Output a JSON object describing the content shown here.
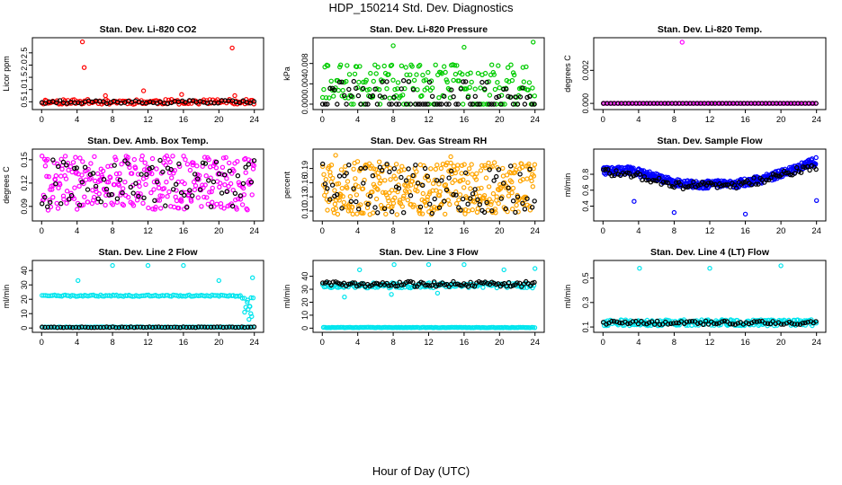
{
  "title": "HDP_150214  Std. Dev. Diagnostics",
  "xlabel": "Hour of Day (UTC)",
  "chart_data": [
    {
      "type": "scatter",
      "title": "Stan. Dev. Li-820 CO2",
      "ylabel": "Licor ppm",
      "xlim": [
        0,
        24
      ],
      "ylim": [
        0.3,
        3.0
      ],
      "xticks": [
        0,
        4,
        8,
        12,
        16,
        20,
        24
      ],
      "yticks": [
        0.5,
        1.0,
        1.5,
        2.0,
        2.5
      ],
      "ytick_labels": [
        "0.5",
        "1.0",
        "1.5",
        "2.0",
        "2.5"
      ],
      "series": [
        {
          "color": "#ff0000",
          "gen": {
            "kind": "band",
            "n": 140,
            "lo": 0.4,
            "hi": 0.6,
            "seed": 11
          },
          "points": [
            [
              4.6,
              2.95
            ],
            [
              4.8,
              1.9
            ],
            [
              11.5,
              0.95
            ],
            [
              15.8,
              0.8
            ],
            [
              21.5,
              2.7
            ],
            [
              21.8,
              0.75
            ],
            [
              7.2,
              0.75
            ]
          ]
        },
        {
          "color": "#000000",
          "gen": {
            "kind": "band",
            "n": 60,
            "lo": 0.42,
            "hi": 0.56,
            "seed": 12
          },
          "points": []
        }
      ]
    },
    {
      "type": "scatter",
      "title": "Stan. Dev. Li-820 Pressure",
      "ylabel": "kPa",
      "xlim": [
        0,
        24
      ],
      "ylim": [
        -0.0005,
        0.0125
      ],
      "xticks": [
        0,
        4,
        8,
        12,
        16,
        20,
        24
      ],
      "yticks": [
        0,
        0.004,
        0.008
      ],
      "ytick_labels": [
        "0.000",
        "0.004",
        "0.008"
      ],
      "series": [
        {
          "color": "#00cc00",
          "gen": {
            "kind": "mix",
            "n": 200,
            "seed": 21,
            "levels": [
              0,
              0.0015,
              0.003,
              0.0045,
              0.006,
              0.0075
            ],
            "jitter": 0.0003
          },
          "points": [
            [
              8.0,
              0.0115
            ],
            [
              16.0,
              0.0112
            ],
            [
              23.8,
              0.0122
            ]
          ]
        },
        {
          "color": "#000000",
          "gen": {
            "kind": "mix",
            "n": 90,
            "seed": 22,
            "levels": [
              0,
              0,
              0,
              0.0015,
              0.003,
              0.0045
            ],
            "jitter": 0.0002
          },
          "points": []
        }
      ]
    },
    {
      "type": "scatter",
      "title": "Stan. Dev. Li-820 Temp.",
      "ylabel": "degrees C",
      "xlim": [
        0,
        24
      ],
      "ylim": [
        -0.0002,
        0.0038
      ],
      "xticks": [
        0,
        4,
        8,
        12,
        16,
        20,
        24
      ],
      "yticks": [
        0,
        0.002
      ],
      "ytick_labels": [
        "0.000",
        "0.002"
      ],
      "series": [
        {
          "color": "#ff00ff",
          "gen": {
            "kind": "band",
            "n": 100,
            "lo": 0,
            "hi": 0,
            "seed": 31
          },
          "points": [
            [
              8.9,
              0.0037
            ],
            [
              0.1,
              0.0
            ]
          ]
        },
        {
          "color": "#000000",
          "gen": {
            "kind": "band",
            "n": 60,
            "lo": 0,
            "hi": 0,
            "seed": 32
          },
          "points": []
        }
      ]
    },
    {
      "type": "scatter",
      "title": "Stan. Dev. Amb. Box Temp.",
      "ylabel": "degrees C",
      "xlim": [
        0,
        24
      ],
      "ylim": [
        0.075,
        0.16
      ],
      "xticks": [
        0,
        4,
        8,
        12,
        16,
        20,
        24
      ],
      "yticks": [
        0.09,
        0.12,
        0.15
      ],
      "ytick_labels": [
        "0.09",
        "0.12",
        "0.15"
      ],
      "series": [
        {
          "color": "#ff00ff",
          "gen": {
            "kind": "band",
            "n": 320,
            "lo": 0.085,
            "hi": 0.155,
            "seed": 41
          },
          "points": []
        },
        {
          "color": "#000000",
          "gen": {
            "kind": "band",
            "n": 80,
            "lo": 0.088,
            "hi": 0.15,
            "seed": 42
          },
          "points": []
        }
      ]
    },
    {
      "type": "scatter",
      "title": "Stan. Dev. Gas Stream RH",
      "ylabel": "percent",
      "xlim": [
        0,
        24
      ],
      "ylim": [
        0.085,
        0.225
      ],
      "xticks": [
        0,
        4,
        8,
        12,
        16,
        20,
        24
      ],
      "yticks": [
        0.1,
        0.13,
        0.16,
        0.19
      ],
      "ytick_labels": [
        "0.10",
        "0.13",
        "0.16",
        "0.19"
      ],
      "series": [
        {
          "color": "#ffa500",
          "gen": {
            "kind": "band",
            "n": 360,
            "lo": 0.092,
            "hi": 0.205,
            "seed": 51
          },
          "points": [
            [
              1.5,
              0.218
            ],
            [
              14.5,
              0.215
            ]
          ]
        },
        {
          "color": "#000000",
          "gen": {
            "kind": "band",
            "n": 90,
            "lo": 0.095,
            "hi": 0.2,
            "seed": 52
          },
          "points": []
        }
      ]
    },
    {
      "type": "scatter",
      "title": "Stan. Dev. Sample Flow",
      "ylabel": "ml/min",
      "xlim": [
        0,
        24
      ],
      "ylim": [
        0.25,
        1.08
      ],
      "xticks": [
        0,
        4,
        8,
        12,
        16,
        20,
        24
      ],
      "yticks": [
        0.4,
        0.6,
        0.8
      ],
      "ytick_labels": [
        "0.4",
        "0.6",
        "0.8"
      ],
      "series": [
        {
          "color": "#0000ff",
          "gen": {
            "kind": "curve",
            "n": 420,
            "seed": 61,
            "spread": 0.05,
            "curve": [
              [
                0,
                0.84
              ],
              [
                3,
                0.85
              ],
              [
                6,
                0.76
              ],
              [
                9,
                0.68
              ],
              [
                12,
                0.67
              ],
              [
                15,
                0.68
              ],
              [
                18,
                0.74
              ],
              [
                21,
                0.84
              ],
              [
                24,
                0.97
              ]
            ]
          },
          "points": [
            [
              8,
              0.32
            ],
            [
              16,
              0.3
            ],
            [
              24,
              0.47
            ],
            [
              3.5,
              0.46
            ]
          ]
        },
        {
          "color": "#000000",
          "gen": {
            "kind": "curve",
            "n": 100,
            "seed": 62,
            "spread": 0.045,
            "curve": [
              [
                0,
                0.82
              ],
              [
                3,
                0.8
              ],
              [
                6,
                0.72
              ],
              [
                9,
                0.66
              ],
              [
                12,
                0.66
              ],
              [
                15,
                0.67
              ],
              [
                18,
                0.73
              ],
              [
                21,
                0.82
              ],
              [
                24,
                0.9
              ]
            ]
          },
          "points": []
        }
      ]
    },
    {
      "type": "scatter",
      "title": "Stan. Dev. Line 2 Flow",
      "ylabel": "ml/min",
      "xlim": [
        0,
        24
      ],
      "ylim": [
        -1,
        45
      ],
      "xticks": [
        0,
        4,
        8,
        12,
        16,
        20,
        24
      ],
      "yticks": [
        0,
        10,
        20,
        30,
        40
      ],
      "ytick_labels": [
        "0",
        "10",
        "20",
        "30",
        "40"
      ],
      "series": [
        {
          "color": "#00e5ee",
          "gen": {
            "kind": "line2",
            "n": 240,
            "seed": 71
          },
          "points": [
            [
              4.1,
              33
            ],
            [
              8,
              43.5
            ],
            [
              12,
              43.5
            ],
            [
              16,
              43.5
            ],
            [
              20,
              33
            ],
            [
              23.8,
              35
            ],
            [
              23.5,
              15
            ],
            [
              23.6,
              10
            ],
            [
              23.2,
              18
            ],
            [
              23.4,
              6
            ],
            [
              23.7,
              8
            ],
            [
              22.9,
              11
            ],
            [
              23.3,
              13
            ]
          ]
        },
        {
          "color": "#000000",
          "gen": {
            "kind": "band",
            "n": 70,
            "lo": 0.3,
            "hi": 0.8,
            "seed": 72
          },
          "points": []
        }
      ]
    },
    {
      "type": "scatter",
      "title": "Stan. Dev. Line 3 Flow",
      "ylabel": "ml/min",
      "xlim": [
        0,
        24
      ],
      "ylim": [
        -1,
        50
      ],
      "xticks": [
        0,
        4,
        8,
        12,
        16,
        20,
        24
      ],
      "yticks": [
        0,
        10,
        20,
        30,
        40
      ],
      "ytick_labels": [
        "0",
        "10",
        "20",
        "30",
        "40"
      ],
      "series": [
        {
          "color": "#00e5ee",
          "gen": {
            "kind": "line3",
            "n": 300,
            "seed": 81
          },
          "points": [
            [
              4.2,
              45
            ],
            [
              8.1,
              49
            ],
            [
              12,
              49
            ],
            [
              16,
              49
            ],
            [
              20.5,
              45
            ],
            [
              24,
              46
            ],
            [
              2.5,
              24
            ],
            [
              7.8,
              26
            ],
            [
              13,
              27
            ]
          ]
        },
        {
          "color": "#000000",
          "gen": {
            "kind": "band",
            "n": 100,
            "lo": 32,
            "hi": 36,
            "seed": 82
          },
          "points": []
        }
      ]
    },
    {
      "type": "scatter",
      "title": "Stan. Dev. Line 4 (LT) Flow",
      "ylabel": "ml/min",
      "xlim": [
        0,
        24
      ],
      "ylim": [
        0.08,
        0.62
      ],
      "xticks": [
        0,
        4,
        8,
        12,
        16,
        20,
        24
      ],
      "yticks": [
        0.1,
        0.3,
        0.5
      ],
      "ytick_labels": [
        "0.1",
        "0.3",
        "0.5"
      ],
      "series": [
        {
          "color": "#00e5ee",
          "gen": {
            "kind": "band",
            "n": 220,
            "lo": 0.11,
            "hi": 0.16,
            "seed": 91
          },
          "points": [
            [
              4.1,
              0.58
            ],
            [
              12,
              0.58
            ],
            [
              20,
              0.6
            ]
          ]
        },
        {
          "color": "#000000",
          "gen": {
            "kind": "band",
            "n": 80,
            "lo": 0.12,
            "hi": 0.15,
            "seed": 92
          },
          "points": []
        }
      ]
    }
  ]
}
